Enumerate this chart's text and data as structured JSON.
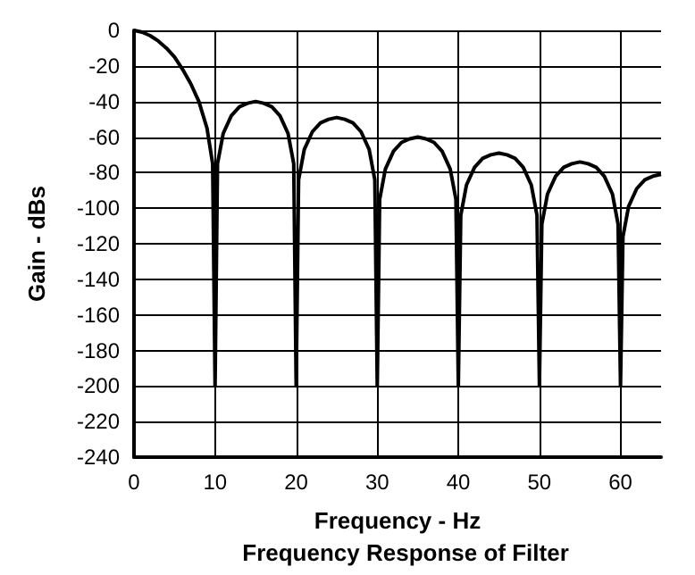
{
  "chart_data": {
    "type": "line",
    "title": "Frequency Response of Filter",
    "xlabel": "Frequency - Hz",
    "ylabel": "Gain - dBs",
    "series": [
      {
        "color": "#000000",
        "x": [
          0,
          1,
          2,
          3,
          4,
          5,
          6,
          7,
          8,
          9,
          9.7,
          10,
          10.3,
          11,
          12,
          13,
          14,
          15,
          16,
          17,
          18,
          19,
          19.7,
          20,
          20.3,
          21,
          22,
          23,
          24,
          25,
          26,
          27,
          28,
          29,
          29.7,
          30,
          30.3,
          31,
          32,
          33,
          34,
          35,
          36,
          37,
          38,
          39,
          39.7,
          40,
          40.3,
          41,
          42,
          43,
          44,
          45,
          46,
          47,
          48,
          49,
          49.7,
          50,
          50.3,
          51,
          52,
          53,
          54,
          55,
          56,
          57,
          58,
          59,
          59.7,
          60,
          60.3,
          61,
          62,
          63,
          64,
          65
        ],
        "values": [
          0,
          -1,
          -3,
          -6,
          -10,
          -15,
          -22,
          -30,
          -40,
          -55,
          -75,
          -200,
          -75,
          -58,
          -48,
          -43,
          -41,
          -40,
          -41,
          -43,
          -48,
          -58,
          -75,
          -200,
          -84,
          -67,
          -57,
          -52,
          -50,
          -49,
          -50,
          -52,
          -57,
          -67,
          -84,
          -200,
          -95,
          -78,
          -68,
          -63,
          -61,
          -60,
          -61,
          -63,
          -68,
          -78,
          -95,
          -200,
          -104,
          -87,
          -77,
          -72,
          -70,
          -69,
          -70,
          -72,
          -77,
          -87,
          -104,
          -200,
          -109,
          -92,
          -82,
          -77,
          -75,
          -74,
          -75,
          -77,
          -82,
          -92,
          -109,
          -200,
          -116,
          -99,
          -89,
          -84,
          -82,
          -81
        ]
      }
    ],
    "xlim": [
      0,
      65
    ],
    "xticks": [
      0,
      10,
      20,
      30,
      40,
      50,
      60
    ],
    "ylim": [
      -240,
      0
    ],
    "yticks": [
      -240,
      -220,
      -200,
      -180,
      -160,
      -140,
      -120,
      -100,
      -80,
      -60,
      -40,
      -20,
      0
    ],
    "grid": true,
    "marker": "none",
    "line_style": "solid"
  }
}
